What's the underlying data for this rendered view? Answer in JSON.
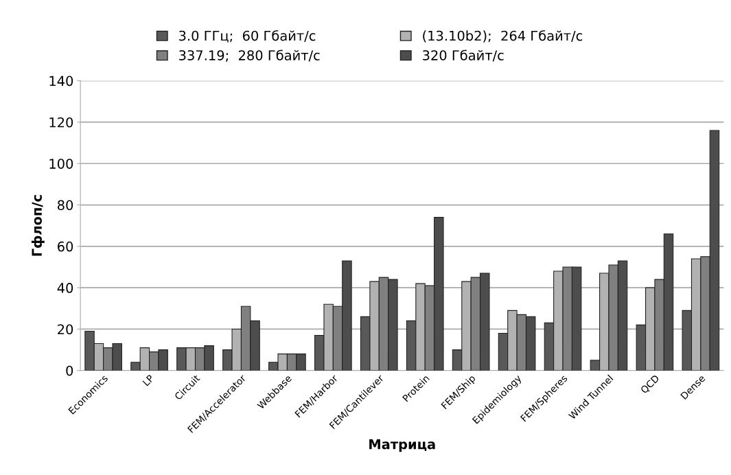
{
  "chart_data": {
    "type": "bar",
    "xlabel": "Матрица",
    "ylabel": "Гфлоп/с",
    "categories": [
      "Economics",
      "LP",
      "Circuit",
      "FEM/Accelerator",
      "Webbase",
      "FEM/Harbor",
      "FEM/Cantilever",
      "Protein",
      "FEM/Ship",
      "Epidemiology",
      "FEM/Spheres",
      "Wind Tunnel",
      "QCD",
      "Dense"
    ],
    "series": [
      {
        "name": "3.0 ГГц;  60 Гбайт/с",
        "color": "#595959",
        "values": [
          19,
          4,
          11,
          10,
          4,
          17,
          26,
          24,
          10,
          18,
          23,
          5,
          22,
          29
        ]
      },
      {
        "name": "(13.10b2);  264 Гбайт/с",
        "color": "#b2b2b2",
        "values": [
          13,
          11,
          11,
          20,
          8,
          32,
          43,
          42,
          43,
          29,
          48,
          47,
          40,
          54
        ]
      },
      {
        "name": "337.19;  280 Гбайт/с",
        "color": "#808080",
        "values": [
          11,
          9,
          11,
          31,
          8,
          31,
          45,
          41,
          45,
          27,
          50,
          51,
          44,
          55
        ]
      },
      {
        "name": "320 Гбайт/с",
        "color": "#4d4d4d",
        "values": [
          13,
          10,
          12,
          24,
          8,
          53,
          44,
          74,
          47,
          26,
          50,
          53,
          66,
          116
        ]
      }
    ],
    "ylim": [
      0,
      140
    ],
    "yticks": [
      0,
      20,
      40,
      60,
      80,
      100,
      120,
      140
    ],
    "grid": "y",
    "legend": "top"
  }
}
